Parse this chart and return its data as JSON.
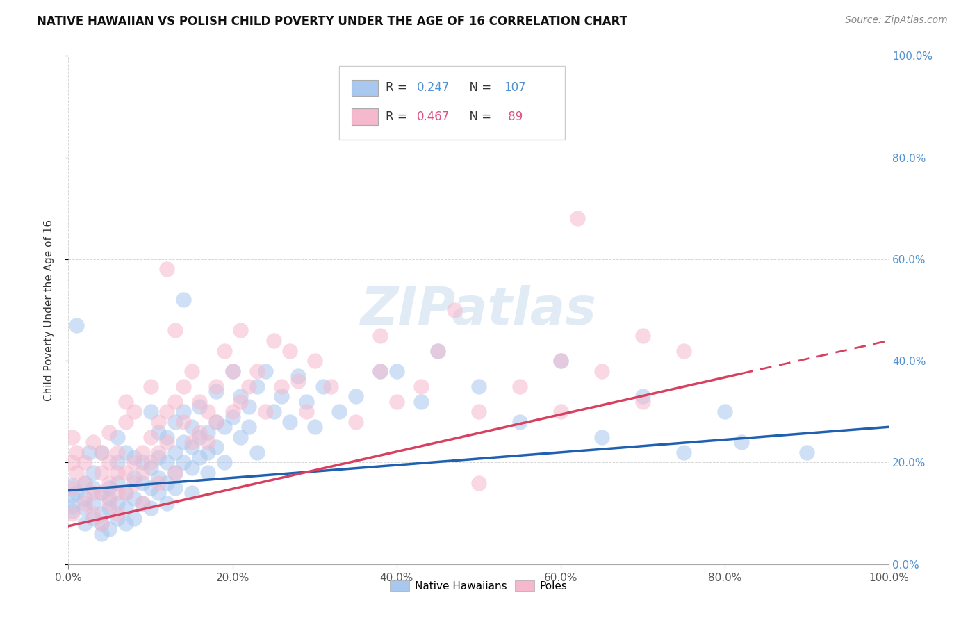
{
  "title": "NATIVE HAWAIIAN VS POLISH CHILD POVERTY UNDER THE AGE OF 16 CORRELATION CHART",
  "source": "Source: ZipAtlas.com",
  "ylabel": "Child Poverty Under the Age of 16",
  "watermark": "ZIPatlas",
  "legend_entries": [
    {
      "R": "0.247",
      "N": "107",
      "color": "#a8c8f0"
    },
    {
      "R": "0.467",
      "N": " 89",
      "color": "#f5b8cc"
    }
  ],
  "blue_color": "#a8c8f0",
  "pink_color": "#f5b8cc",
  "blue_line_color": "#2060b0",
  "pink_line_color": "#d84060",
  "background_color": "#ffffff",
  "grid_color": "#cccccc",
  "ytick_label_color": "#5090d0",
  "blue_scatter": [
    [
      0.005,
      0.135
    ],
    [
      0.005,
      0.155
    ],
    [
      0.005,
      0.115
    ],
    [
      0.005,
      0.105
    ],
    [
      0.01,
      0.14
    ],
    [
      0.01,
      0.47
    ],
    [
      0.02,
      0.11
    ],
    [
      0.02,
      0.08
    ],
    [
      0.02,
      0.13
    ],
    [
      0.02,
      0.16
    ],
    [
      0.025,
      0.22
    ],
    [
      0.03,
      0.12
    ],
    [
      0.03,
      0.09
    ],
    [
      0.03,
      0.15
    ],
    [
      0.03,
      0.18
    ],
    [
      0.04,
      0.1
    ],
    [
      0.04,
      0.14
    ],
    [
      0.04,
      0.08
    ],
    [
      0.04,
      0.22
    ],
    [
      0.04,
      0.06
    ],
    [
      0.05,
      0.15
    ],
    [
      0.05,
      0.11
    ],
    [
      0.05,
      0.13
    ],
    [
      0.05,
      0.07
    ],
    [
      0.06,
      0.2
    ],
    [
      0.06,
      0.16
    ],
    [
      0.06,
      0.12
    ],
    [
      0.06,
      0.09
    ],
    [
      0.06,
      0.25
    ],
    [
      0.07,
      0.14
    ],
    [
      0.07,
      0.11
    ],
    [
      0.07,
      0.22
    ],
    [
      0.07,
      0.08
    ],
    [
      0.08,
      0.17
    ],
    [
      0.08,
      0.13
    ],
    [
      0.08,
      0.21
    ],
    [
      0.08,
      0.09
    ],
    [
      0.09,
      0.16
    ],
    [
      0.09,
      0.2
    ],
    [
      0.09,
      0.12
    ],
    [
      0.1,
      0.19
    ],
    [
      0.1,
      0.15
    ],
    [
      0.1,
      0.11
    ],
    [
      0.1,
      0.3
    ],
    [
      0.11,
      0.21
    ],
    [
      0.11,
      0.17
    ],
    [
      0.11,
      0.14
    ],
    [
      0.11,
      0.26
    ],
    [
      0.12,
      0.2
    ],
    [
      0.12,
      0.16
    ],
    [
      0.12,
      0.25
    ],
    [
      0.12,
      0.12
    ],
    [
      0.13,
      0.22
    ],
    [
      0.13,
      0.18
    ],
    [
      0.13,
      0.28
    ],
    [
      0.13,
      0.15
    ],
    [
      0.14,
      0.24
    ],
    [
      0.14,
      0.2
    ],
    [
      0.14,
      0.3
    ],
    [
      0.14,
      0.52
    ],
    [
      0.15,
      0.23
    ],
    [
      0.15,
      0.19
    ],
    [
      0.15,
      0.27
    ],
    [
      0.15,
      0.14
    ],
    [
      0.16,
      0.25
    ],
    [
      0.16,
      0.21
    ],
    [
      0.16,
      0.31
    ],
    [
      0.17,
      0.26
    ],
    [
      0.17,
      0.22
    ],
    [
      0.17,
      0.18
    ],
    [
      0.18,
      0.28
    ],
    [
      0.18,
      0.23
    ],
    [
      0.18,
      0.34
    ],
    [
      0.19,
      0.27
    ],
    [
      0.19,
      0.2
    ],
    [
      0.2,
      0.29
    ],
    [
      0.2,
      0.38
    ],
    [
      0.21,
      0.25
    ],
    [
      0.21,
      0.33
    ],
    [
      0.22,
      0.31
    ],
    [
      0.22,
      0.27
    ],
    [
      0.23,
      0.35
    ],
    [
      0.23,
      0.22
    ],
    [
      0.24,
      0.38
    ],
    [
      0.25,
      0.3
    ],
    [
      0.26,
      0.33
    ],
    [
      0.27,
      0.28
    ],
    [
      0.28,
      0.37
    ],
    [
      0.29,
      0.32
    ],
    [
      0.3,
      0.27
    ],
    [
      0.31,
      0.35
    ],
    [
      0.33,
      0.3
    ],
    [
      0.35,
      0.33
    ],
    [
      0.38,
      0.38
    ],
    [
      0.4,
      0.38
    ],
    [
      0.43,
      0.32
    ],
    [
      0.45,
      0.42
    ],
    [
      0.5,
      0.35
    ],
    [
      0.55,
      0.28
    ],
    [
      0.6,
      0.4
    ],
    [
      0.65,
      0.25
    ],
    [
      0.7,
      0.33
    ],
    [
      0.75,
      0.22
    ],
    [
      0.8,
      0.3
    ],
    [
      0.82,
      0.24
    ],
    [
      0.9,
      0.22
    ]
  ],
  "pink_scatter": [
    [
      0.005,
      0.25
    ],
    [
      0.005,
      0.2
    ],
    [
      0.005,
      0.15
    ],
    [
      0.005,
      0.1
    ],
    [
      0.01,
      0.22
    ],
    [
      0.01,
      0.18
    ],
    [
      0.02,
      0.12
    ],
    [
      0.02,
      0.16
    ],
    [
      0.02,
      0.2
    ],
    [
      0.03,
      0.14
    ],
    [
      0.03,
      0.1
    ],
    [
      0.03,
      0.24
    ],
    [
      0.04,
      0.18
    ],
    [
      0.04,
      0.14
    ],
    [
      0.04,
      0.22
    ],
    [
      0.04,
      0.08
    ],
    [
      0.05,
      0.16
    ],
    [
      0.05,
      0.12
    ],
    [
      0.05,
      0.2
    ],
    [
      0.05,
      0.26
    ],
    [
      0.06,
      0.18
    ],
    [
      0.06,
      0.14
    ],
    [
      0.06,
      0.22
    ],
    [
      0.06,
      0.1
    ],
    [
      0.07,
      0.32
    ],
    [
      0.07,
      0.18
    ],
    [
      0.07,
      0.14
    ],
    [
      0.07,
      0.28
    ],
    [
      0.08,
      0.2
    ],
    [
      0.08,
      0.16
    ],
    [
      0.08,
      0.3
    ],
    [
      0.09,
      0.22
    ],
    [
      0.09,
      0.18
    ],
    [
      0.09,
      0.12
    ],
    [
      0.1,
      0.25
    ],
    [
      0.1,
      0.2
    ],
    [
      0.1,
      0.35
    ],
    [
      0.11,
      0.28
    ],
    [
      0.11,
      0.22
    ],
    [
      0.11,
      0.16
    ],
    [
      0.12,
      0.3
    ],
    [
      0.12,
      0.24
    ],
    [
      0.12,
      0.58
    ],
    [
      0.13,
      0.32
    ],
    [
      0.13,
      0.18
    ],
    [
      0.13,
      0.46
    ],
    [
      0.14,
      0.35
    ],
    [
      0.14,
      0.28
    ],
    [
      0.15,
      0.38
    ],
    [
      0.15,
      0.24
    ],
    [
      0.16,
      0.32
    ],
    [
      0.16,
      0.26
    ],
    [
      0.17,
      0.3
    ],
    [
      0.17,
      0.24
    ],
    [
      0.18,
      0.35
    ],
    [
      0.18,
      0.28
    ],
    [
      0.19,
      0.42
    ],
    [
      0.2,
      0.38
    ],
    [
      0.2,
      0.3
    ],
    [
      0.21,
      0.32
    ],
    [
      0.21,
      0.46
    ],
    [
      0.22,
      0.35
    ],
    [
      0.23,
      0.38
    ],
    [
      0.24,
      0.3
    ],
    [
      0.25,
      0.44
    ],
    [
      0.26,
      0.35
    ],
    [
      0.27,
      0.42
    ],
    [
      0.28,
      0.36
    ],
    [
      0.29,
      0.3
    ],
    [
      0.3,
      0.4
    ],
    [
      0.32,
      0.35
    ],
    [
      0.35,
      0.28
    ],
    [
      0.38,
      0.38
    ],
    [
      0.38,
      0.45
    ],
    [
      0.4,
      0.32
    ],
    [
      0.43,
      0.35
    ],
    [
      0.45,
      0.42
    ],
    [
      0.47,
      0.5
    ],
    [
      0.5,
      0.3
    ],
    [
      0.5,
      0.16
    ],
    [
      0.55,
      0.35
    ],
    [
      0.6,
      0.4
    ],
    [
      0.6,
      0.3
    ],
    [
      0.62,
      0.68
    ],
    [
      0.65,
      0.38
    ],
    [
      0.7,
      0.45
    ],
    [
      0.7,
      0.32
    ],
    [
      0.75,
      0.42
    ]
  ],
  "blue_reg": [
    0.0,
    0.145,
    1.0,
    0.27
  ],
  "pink_reg_solid": [
    0.0,
    0.075,
    0.82,
    0.375
  ],
  "pink_reg_dashed": [
    0.82,
    0.375,
    1.0,
    0.44
  ],
  "xlim": [
    0.0,
    1.0
  ],
  "ylim": [
    0.0,
    1.0
  ],
  "xtick_vals": [
    0.0,
    0.2,
    0.4,
    0.6,
    0.8,
    1.0
  ],
  "ytick_vals": [
    0.0,
    0.2,
    0.4,
    0.6,
    0.8,
    1.0
  ]
}
